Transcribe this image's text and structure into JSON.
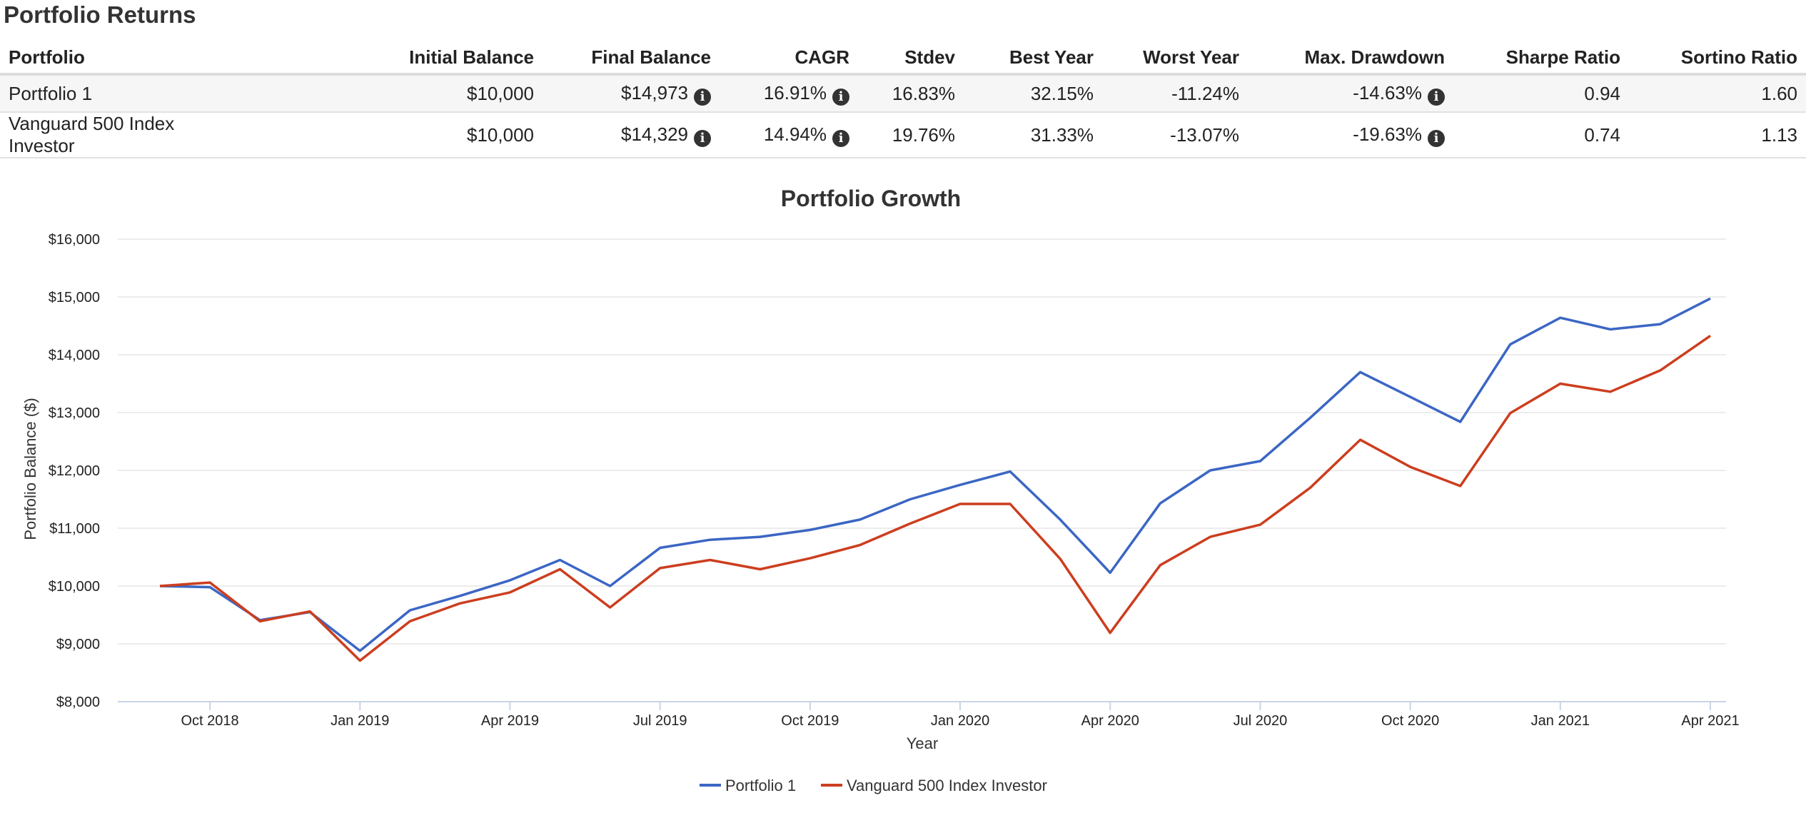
{
  "page_title": "Portfolio Returns",
  "table": {
    "headers": [
      "Portfolio",
      "Initial Balance",
      "Final Balance",
      "CAGR",
      "Stdev",
      "Best Year",
      "Worst Year",
      "Max. Drawdown",
      "Sharpe Ratio",
      "Sortino Ratio"
    ],
    "rows": [
      [
        "Portfolio 1",
        "$10,000",
        "$14,973",
        "16.91%",
        "16.83%",
        "32.15%",
        "-11.24%",
        "-14.63%",
        "0.94",
        "1.60"
      ],
      [
        "Vanguard 500 Index Investor",
        "$10,000",
        "$14,329",
        "14.94%",
        "19.76%",
        "31.33%",
        "-13.07%",
        "-19.63%",
        "0.74",
        "1.13"
      ]
    ],
    "info_icon": "info-circle-icon",
    "info_columns": [
      2,
      3,
      7
    ]
  },
  "chart_data": {
    "type": "line",
    "title": "Portfolio Growth",
    "xlabel": "Year",
    "ylabel": "Portfolio Balance ($)",
    "x": [
      "2018-08",
      "2018-09",
      "2018-10",
      "2018-11",
      "2018-12",
      "2019-01",
      "2019-02",
      "2019-03",
      "2019-04",
      "2019-05",
      "2019-06",
      "2019-07",
      "2019-08",
      "2019-09",
      "2019-10",
      "2019-11",
      "2019-12",
      "2020-01",
      "2020-02",
      "2020-03",
      "2020-04",
      "2020-05",
      "2020-06",
      "2020-07",
      "2020-08",
      "2020-09",
      "2020-10",
      "2020-11",
      "2020-12",
      "2021-01",
      "2021-02",
      "2021-03"
    ],
    "x_tick_labels": [
      "Oct 2018",
      "Jan 2019",
      "Apr 2019",
      "Jul 2019",
      "Oct 2019",
      "Jan 2020",
      "Apr 2020",
      "Jul 2020",
      "Oct 2020",
      "Jan 2021",
      "Apr 2021"
    ],
    "y_tick_labels": [
      "$8,000",
      "$9,000",
      "$10,000",
      "$11,000",
      "$12,000",
      "$13,000",
      "$14,000",
      "$15,000",
      "$16,000"
    ],
    "ylim": [
      8000,
      16000
    ],
    "grid": true,
    "legend_position": "bottom",
    "series": [
      {
        "name": "Portfolio 1",
        "color": "#3b66c4",
        "values": [
          10000,
          9980,
          9410,
          9550,
          8880,
          9580,
          9830,
          10100,
          10450,
          10000,
          10660,
          10800,
          10850,
          10970,
          11150,
          11500,
          11750,
          11980,
          11150,
          10230,
          11430,
          12000,
          12160,
          12910,
          13700,
          13270,
          12840,
          14180,
          14640,
          14440,
          14530,
          14973
        ]
      },
      {
        "name": "Vanguard 500 Index Investor",
        "color": "#cc3e1f",
        "values": [
          10000,
          10060,
          9390,
          9560,
          8710,
          9390,
          9700,
          9890,
          10290,
          9630,
          10310,
          10450,
          10290,
          10480,
          10710,
          11080,
          11420,
          11420,
          10470,
          9190,
          10360,
          10850,
          11060,
          11700,
          12530,
          12060,
          11730,
          12990,
          13500,
          13360,
          13730,
          14329
        ]
      }
    ]
  }
}
